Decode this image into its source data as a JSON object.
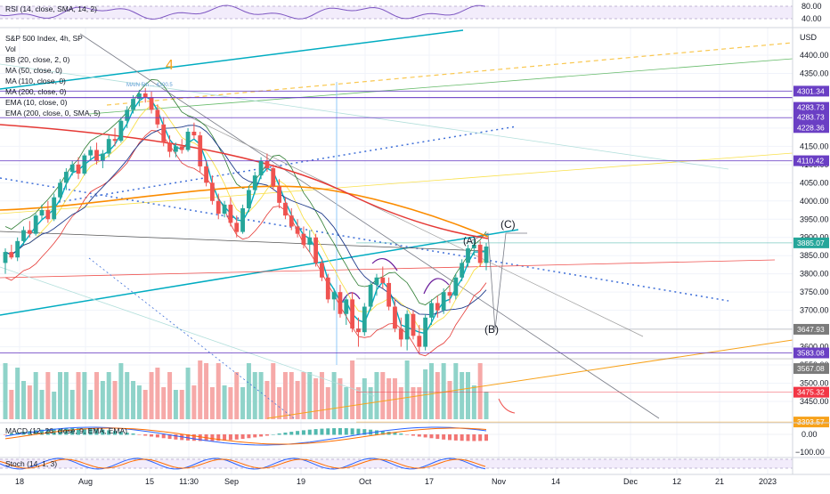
{
  "chart_data": {
    "type": "candlestick",
    "symbol_label": "S&P 500 Index, 4h, SP",
    "price_axis_unit": "USD",
    "price_ticks": [
      4400.0,
      4350.0,
      4300.0,
      4250.0,
      4200.0,
      4150.0,
      4100.0,
      4050.0,
      4000.0,
      3950.0,
      3900.0,
      3850.0,
      3800.0,
      3750.0,
      3700.0,
      3650.0,
      3600.0,
      3550.0,
      3500.0,
      3450.0
    ],
    "price_ylim": [
      3420,
      4460
    ],
    "x_tick_labels": [
      "18",
      "Aug",
      "15",
      "11:30",
      "Sep",
      "19",
      "Oct",
      "17",
      "Nov",
      "14",
      "Dec",
      "12",
      "21",
      "2023"
    ],
    "indicators": [
      "Vol",
      "BB (20, close, 2, 0)",
      "MA (50, close, 0)",
      "MA (110, close, 0)",
      "MA (200, close, 0)",
      "EMA (10, close, 0)",
      "EMA (200, close, 0, SMA, 5)"
    ],
    "price_labels": [
      {
        "value": 4301.34,
        "text": "4301.34",
        "color": "#6a3fc4"
      },
      {
        "value": 4283.73,
        "text": "4283.73",
        "color": "#6a3fc4"
      },
      {
        "value": 4283.73,
        "text": "4283.73",
        "color": "#6a3fc4"
      },
      {
        "value": 4228.36,
        "text": "4228.36",
        "color": "#6a3fc4"
      },
      {
        "value": 4110.42,
        "text": "4110.42",
        "color": "#6a3fc4"
      },
      {
        "value": 3885.07,
        "text": "3885.07",
        "color": "#26a69a"
      },
      {
        "value": 3647.93,
        "text": "3647.93",
        "color": "#7b7b7b"
      },
      {
        "value": 3583.08,
        "text": "3583.08",
        "color": "#6a3fc4"
      },
      {
        "value": 3567.08,
        "text": "3567.08",
        "color": "#7b7b7b"
      },
      {
        "value": 3475.32,
        "text": "3475.32",
        "color": "#f23645"
      },
      {
        "value": 3393.57,
        "text": "3393.57",
        "color": "#f7a21b"
      }
    ],
    "annotations": [
      {
        "text": "4",
        "color": "#f7a21b"
      },
      {
        "text": "(C)",
        "color": "#131722"
      },
      {
        "text": "(A)",
        "color": "#131722"
      },
      {
        "text": "(B)",
        "color": "#131722"
      },
      {
        "text": "MAIN 5th ... 4300.5",
        "color": "#5b9bd5"
      }
    ],
    "candles_ohlc": [
      [
        3830,
        3870,
        3800,
        3860
      ],
      [
        3860,
        3880,
        3840,
        3845
      ],
      [
        3845,
        3900,
        3835,
        3890
      ],
      [
        3890,
        3930,
        3880,
        3920
      ],
      [
        3920,
        3945,
        3900,
        3910
      ],
      [
        3910,
        3965,
        3905,
        3960
      ],
      [
        3960,
        3990,
        3950,
        3975
      ],
      [
        3975,
        4000,
        3940,
        3950
      ],
      [
        3950,
        4020,
        3945,
        4010
      ],
      [
        4010,
        4060,
        4000,
        4050
      ],
      [
        4050,
        4090,
        4030,
        4080
      ],
      [
        4080,
        4110,
        4070,
        4100
      ],
      [
        4100,
        4120,
        4060,
        4075
      ],
      [
        4075,
        4130,
        4070,
        4125
      ],
      [
        4125,
        4150,
        4110,
        4140
      ],
      [
        4140,
        4160,
        4100,
        4110
      ],
      [
        4110,
        4140,
        4090,
        4130
      ],
      [
        4130,
        4180,
        4120,
        4170
      ],
      [
        4170,
        4200,
        4150,
        4165
      ],
      [
        4165,
        4230,
        4160,
        4220
      ],
      [
        4220,
        4260,
        4200,
        4250
      ],
      [
        4250,
        4290,
        4240,
        4280
      ],
      [
        4280,
        4305,
        4260,
        4295
      ],
      [
        4295,
        4310,
        4270,
        4285
      ],
      [
        4285,
        4300,
        4240,
        4250
      ],
      [
        4250,
        4265,
        4200,
        4210
      ],
      [
        4210,
        4230,
        4150,
        4160
      ],
      [
        4160,
        4180,
        4120,
        4135
      ],
      [
        4135,
        4160,
        4120,
        4150
      ],
      [
        4150,
        4170,
        4130,
        4140
      ],
      [
        4140,
        4200,
        4135,
        4190
      ],
      [
        4190,
        4215,
        4170,
        4180
      ],
      [
        4180,
        4190,
        4080,
        4095
      ],
      [
        4095,
        4110,
        4040,
        4050
      ],
      [
        4050,
        4070,
        3990,
        4000
      ],
      [
        4000,
        4020,
        3950,
        3965
      ],
      [
        3965,
        4000,
        3955,
        3990
      ],
      [
        3990,
        4010,
        3930,
        3940
      ],
      [
        3940,
        3960,
        3900,
        3915
      ],
      [
        3915,
        3990,
        3910,
        3980
      ],
      [
        3980,
        4040,
        3970,
        4030
      ],
      [
        4030,
        4080,
        4020,
        4070
      ],
      [
        4070,
        4120,
        4060,
        4110
      ],
      [
        4110,
        4130,
        4080,
        4090
      ],
      [
        4090,
        4100,
        4030,
        4040
      ],
      [
        4040,
        4060,
        3980,
        3995
      ],
      [
        3995,
        4010,
        3950,
        3960
      ],
      [
        3960,
        3980,
        3920,
        3930
      ],
      [
        3930,
        3950,
        3900,
        3910
      ],
      [
        3910,
        3930,
        3870,
        3880
      ],
      [
        3880,
        3920,
        3860,
        3900
      ],
      [
        3900,
        3910,
        3820,
        3830
      ],
      [
        3830,
        3840,
        3780,
        3790
      ],
      [
        3790,
        3800,
        3720,
        3730
      ],
      [
        3730,
        3760,
        3700,
        3750
      ],
      [
        3750,
        3770,
        3680,
        3690
      ],
      [
        3690,
        3740,
        3660,
        3730
      ],
      [
        3730,
        3750,
        3640,
        3650
      ],
      [
        3650,
        3680,
        3600,
        3640
      ],
      [
        3640,
        3720,
        3630,
        3710
      ],
      [
        3710,
        3780,
        3700,
        3770
      ],
      [
        3770,
        3800,
        3740,
        3790
      ],
      [
        3790,
        3820,
        3760,
        3775
      ],
      [
        3775,
        3790,
        3700,
        3710
      ],
      [
        3710,
        3730,
        3640,
        3650
      ],
      [
        3650,
        3680,
        3600,
        3620
      ],
      [
        3620,
        3700,
        3590,
        3690
      ],
      [
        3690,
        3700,
        3620,
        3630
      ],
      [
        3630,
        3660,
        3580,
        3600
      ],
      [
        3600,
        3690,
        3590,
        3680
      ],
      [
        3680,
        3730,
        3660,
        3720
      ],
      [
        3720,
        3740,
        3680,
        3700
      ],
      [
        3700,
        3760,
        3690,
        3750
      ],
      [
        3750,
        3770,
        3720,
        3740
      ],
      [
        3740,
        3800,
        3730,
        3790
      ],
      [
        3790,
        3840,
        3780,
        3830
      ],
      [
        3830,
        3880,
        3820,
        3870
      ],
      [
        3870,
        3895,
        3850,
        3880
      ],
      [
        3880,
        3890,
        3820,
        3830
      ],
      [
        3830,
        3885,
        3810,
        3875
      ]
    ],
    "macd": {
      "label": "MACD (12, 26, close, 9, EMA, EMA)",
      "ticks": [
        "0.00",
        "−100.00"
      ]
    },
    "rsi": {
      "label": "RSI (14, close, SMA, 14, 2)",
      "ticks": [
        "80.00",
        "40.00"
      ]
    },
    "stoch": {
      "label": "Stoch (14, 1, 3)"
    }
  }
}
